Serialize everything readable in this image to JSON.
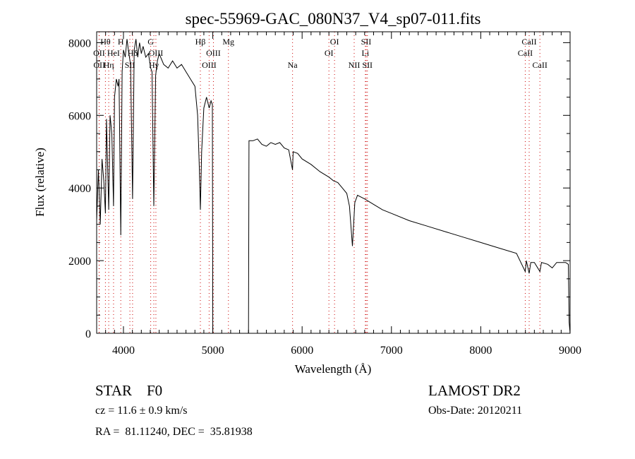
{
  "chart_data": {
    "type": "line",
    "title": "spec-55969-GAC_080N37_V4_sp07-011.fits",
    "xlabel": "Wavelength (Å)",
    "ylabel": "Flux (relative)",
    "xlim": [
      3700,
      9000
    ],
    "ylim": [
      0,
      8300
    ],
    "xticks": [
      4000,
      5000,
      6000,
      7000,
      8000,
      9000
    ],
    "yticks": [
      0,
      2000,
      4000,
      6000,
      8000
    ],
    "grid": false,
    "line_color": "#000000",
    "marker_color": "#cc0000",
    "spectral_lines": [
      {
        "label": "Hθ",
        "wavelength": 3798,
        "row": 0
      },
      {
        "label": "H",
        "wavelength": 3970,
        "row": 0
      },
      {
        "label": "G",
        "wavelength": 4305,
        "row": 0
      },
      {
        "label": "Hβ",
        "wavelength": 4861,
        "row": 0
      },
      {
        "label": "Mg",
        "wavelength": 5175,
        "row": 0
      },
      {
        "label": "OI",
        "wavelength": 6363,
        "row": 0
      },
      {
        "label": "SII",
        "wavelength": 6717,
        "row": 0
      },
      {
        "label": "CaII",
        "wavelength": 8542,
        "row": 0
      },
      {
        "label": "OII",
        "wavelength": 3727,
        "row": 1
      },
      {
        "label": "HeI",
        "wavelength": 3889,
        "row": 1
      },
      {
        "label": "Hδ",
        "wavelength": 4102,
        "row": 1
      },
      {
        "label": "OIII",
        "wavelength": 4363,
        "row": 1
      },
      {
        "label": "OIII",
        "wavelength": 5007,
        "row": 1
      },
      {
        "label": "OI",
        "wavelength": 6300,
        "row": 1
      },
      {
        "label": "Li",
        "wavelength": 6708,
        "row": 1
      },
      {
        "label": "CaII",
        "wavelength": 8498,
        "row": 1
      },
      {
        "label": "OII",
        "wavelength": 3729,
        "row": 2
      },
      {
        "label": "Hη",
        "wavelength": 3835,
        "row": 2
      },
      {
        "label": "SII",
        "wavelength": 4072,
        "row": 2
      },
      {
        "label": "Hγ",
        "wavelength": 4340,
        "row": 2
      },
      {
        "label": "OIII",
        "wavelength": 4959,
        "row": 2
      },
      {
        "label": "Na",
        "wavelength": 5893,
        "row": 2
      },
      {
        "label": "NII",
        "wavelength": 6583,
        "row": 2
      },
      {
        "label": "SII",
        "wavelength": 6731,
        "row": 2
      },
      {
        "label": "CaII",
        "wavelength": 8662,
        "row": 2
      }
    ],
    "series": [
      {
        "name": "flux",
        "points": [
          [
            3700,
            3100
          ],
          [
            3720,
            4500
          ],
          [
            3740,
            3000
          ],
          [
            3760,
            4800
          ],
          [
            3780,
            4200
          ],
          [
            3798,
            3300
          ],
          [
            3810,
            5900
          ],
          [
            3835,
            3400
          ],
          [
            3850,
            6000
          ],
          [
            3870,
            5500
          ],
          [
            3889,
            3500
          ],
          [
            3900,
            6500
          ],
          [
            3920,
            7000
          ],
          [
            3940,
            6800
          ],
          [
            3950,
            7000
          ],
          [
            3970,
            2700
          ],
          [
            3985,
            7200
          ],
          [
            4000,
            7800
          ],
          [
            4020,
            7600
          ],
          [
            4040,
            8100
          ],
          [
            4060,
            7700
          ],
          [
            4080,
            7400
          ],
          [
            4102,
            3700
          ],
          [
            4120,
            7800
          ],
          [
            4140,
            8100
          ],
          [
            4160,
            7600
          ],
          [
            4180,
            8000
          ],
          [
            4200,
            7700
          ],
          [
            4220,
            7900
          ],
          [
            4250,
            7600
          ],
          [
            4280,
            7700
          ],
          [
            4305,
            7300
          ],
          [
            4320,
            7200
          ],
          [
            4340,
            3500
          ],
          [
            4360,
            7100
          ],
          [
            4380,
            7500
          ],
          [
            4400,
            7700
          ],
          [
            4450,
            7400
          ],
          [
            4500,
            7300
          ],
          [
            4550,
            7500
          ],
          [
            4600,
            7300
          ],
          [
            4650,
            7400
          ],
          [
            4700,
            7200
          ],
          [
            4750,
            7000
          ],
          [
            4800,
            6800
          ],
          [
            4830,
            6000
          ],
          [
            4850,
            4500
          ],
          [
            4861,
            3400
          ],
          [
            4875,
            5000
          ],
          [
            4900,
            6200
          ],
          [
            4930,
            6500
          ],
          [
            4960,
            6200
          ],
          [
            4980,
            6400
          ],
          [
            4995,
            6300
          ],
          [
            5000,
            0
          ],
          [
            5400,
            0
          ],
          [
            5405,
            5300
          ],
          [
            5450,
            5300
          ],
          [
            5500,
            5350
          ],
          [
            5550,
            5200
          ],
          [
            5600,
            5150
          ],
          [
            5650,
            5250
          ],
          [
            5700,
            5200
          ],
          [
            5750,
            5250
          ],
          [
            5800,
            5100
          ],
          [
            5850,
            5050
          ],
          [
            5893,
            4500
          ],
          [
            5900,
            5000
          ],
          [
            5950,
            4950
          ],
          [
            6000,
            4800
          ],
          [
            6100,
            4650
          ],
          [
            6200,
            4450
          ],
          [
            6300,
            4300
          ],
          [
            6350,
            4200
          ],
          [
            6400,
            4150
          ],
          [
            6450,
            4000
          ],
          [
            6500,
            3850
          ],
          [
            6530,
            3500
          ],
          [
            6563,
            2400
          ],
          [
            6590,
            3600
          ],
          [
            6620,
            3800
          ],
          [
            6700,
            3700
          ],
          [
            6800,
            3550
          ],
          [
            6900,
            3400
          ],
          [
            7000,
            3300
          ],
          [
            7200,
            3100
          ],
          [
            7400,
            2950
          ],
          [
            7600,
            2800
          ],
          [
            7800,
            2650
          ],
          [
            8000,
            2500
          ],
          [
            8200,
            2350
          ],
          [
            8400,
            2200
          ],
          [
            8498,
            1700
          ],
          [
            8510,
            2000
          ],
          [
            8542,
            1650
          ],
          [
            8560,
            1950
          ],
          [
            8600,
            1950
          ],
          [
            8662,
            1700
          ],
          [
            8680,
            1950
          ],
          [
            8750,
            1900
          ],
          [
            8800,
            1800
          ],
          [
            8850,
            1950
          ],
          [
            8900,
            1950
          ],
          [
            8950,
            1950
          ],
          [
            8980,
            1900
          ],
          [
            8990,
            300
          ],
          [
            9000,
            0
          ]
        ]
      }
    ]
  },
  "info": {
    "object_class": "STAR    F0",
    "cz": "cz = 11.6 ± 0.9 km/s",
    "coords": "RA =  81.11240, DEC =  35.81938",
    "survey": "LAMOST DR2",
    "obs_date": "Obs-Date: 20120211"
  }
}
